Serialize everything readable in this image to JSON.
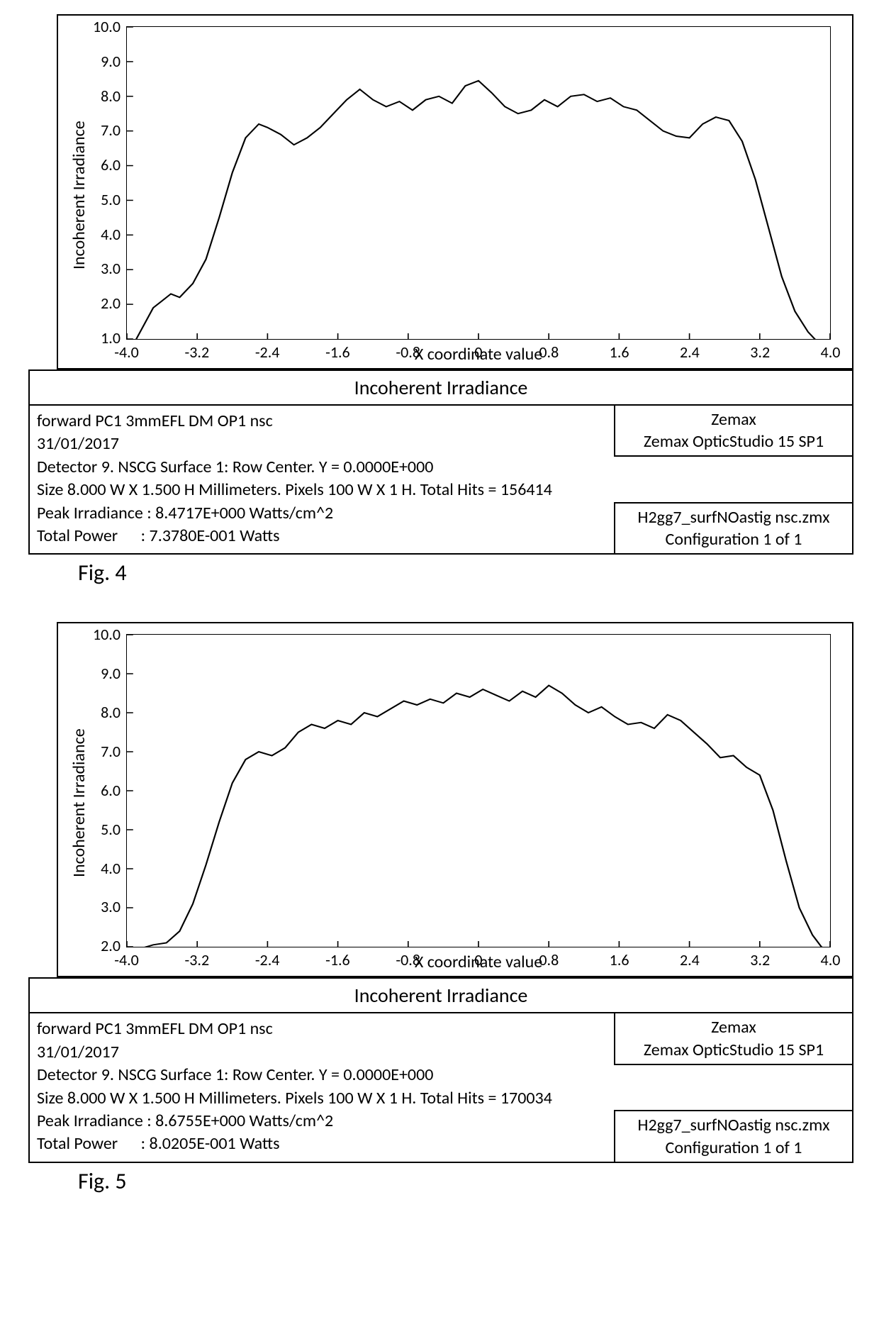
{
  "colors": {
    "line": "#000000",
    "border": "#000000",
    "background": "#ffffff"
  },
  "fig4": {
    "caption": "Fig. 4",
    "chart": {
      "type": "line",
      "ylabel": "Incoherent Irradiance",
      "xlabel": "X coordinate value",
      "xlim": [
        -4.0,
        4.0
      ],
      "ylim": [
        1.0,
        10.0
      ],
      "xtick_step": 0.8,
      "ytick_step": 1.0,
      "xticks": [
        "-4.0",
        "-3.2",
        "-2.4",
        "-1.6",
        "-0.8",
        "0",
        "0.8",
        "1.6",
        "2.4",
        "3.2",
        "4.0"
      ],
      "yticks": [
        "10.0",
        "9.0",
        "8.0",
        "7.0",
        "6.0",
        "5.0",
        "4.0",
        "3.0",
        "2.0",
        "1.0"
      ],
      "label_fontsize": 24,
      "tick_fontsize": 22,
      "line_color": "#000000",
      "line_width": 2,
      "series": [
        {
          "x": -4.0,
          "y": 0.5
        },
        {
          "x": -3.85,
          "y": 1.2
        },
        {
          "x": -3.7,
          "y": 1.9
        },
        {
          "x": -3.6,
          "y": 2.1
        },
        {
          "x": -3.5,
          "y": 2.3
        },
        {
          "x": -3.4,
          "y": 2.2
        },
        {
          "x": -3.25,
          "y": 2.6
        },
        {
          "x": -3.1,
          "y": 3.3
        },
        {
          "x": -2.95,
          "y": 4.5
        },
        {
          "x": -2.8,
          "y": 5.8
        },
        {
          "x": -2.65,
          "y": 6.8
        },
        {
          "x": -2.5,
          "y": 7.2
        },
        {
          "x": -2.4,
          "y": 7.1
        },
        {
          "x": -2.25,
          "y": 6.9
        },
        {
          "x": -2.1,
          "y": 6.6
        },
        {
          "x": -1.95,
          "y": 6.8
        },
        {
          "x": -1.8,
          "y": 7.1
        },
        {
          "x": -1.65,
          "y": 7.5
        },
        {
          "x": -1.5,
          "y": 7.9
        },
        {
          "x": -1.35,
          "y": 8.2
        },
        {
          "x": -1.2,
          "y": 7.9
        },
        {
          "x": -1.05,
          "y": 7.7
        },
        {
          "x": -0.9,
          "y": 7.85
        },
        {
          "x": -0.75,
          "y": 7.6
        },
        {
          "x": -0.6,
          "y": 7.9
        },
        {
          "x": -0.45,
          "y": 8.0
        },
        {
          "x": -0.3,
          "y": 7.8
        },
        {
          "x": -0.15,
          "y": 8.3
        },
        {
          "x": 0.0,
          "y": 8.45
        },
        {
          "x": 0.15,
          "y": 8.1
        },
        {
          "x": 0.3,
          "y": 7.7
        },
        {
          "x": 0.45,
          "y": 7.5
        },
        {
          "x": 0.6,
          "y": 7.6
        },
        {
          "x": 0.75,
          "y": 7.9
        },
        {
          "x": 0.9,
          "y": 7.7
        },
        {
          "x": 1.05,
          "y": 8.0
        },
        {
          "x": 1.2,
          "y": 8.05
        },
        {
          "x": 1.35,
          "y": 7.85
        },
        {
          "x": 1.5,
          "y": 7.95
        },
        {
          "x": 1.65,
          "y": 7.7
        },
        {
          "x": 1.8,
          "y": 7.6
        },
        {
          "x": 1.95,
          "y": 7.3
        },
        {
          "x": 2.1,
          "y": 7.0
        },
        {
          "x": 2.25,
          "y": 6.85
        },
        {
          "x": 2.4,
          "y": 6.8
        },
        {
          "x": 2.55,
          "y": 7.2
        },
        {
          "x": 2.7,
          "y": 7.4
        },
        {
          "x": 2.85,
          "y": 7.3
        },
        {
          "x": 3.0,
          "y": 6.7
        },
        {
          "x": 3.15,
          "y": 5.6
        },
        {
          "x": 3.3,
          "y": 4.2
        },
        {
          "x": 3.45,
          "y": 2.8
        },
        {
          "x": 3.6,
          "y": 1.8
        },
        {
          "x": 3.75,
          "y": 1.2
        },
        {
          "x": 3.9,
          "y": 0.8
        },
        {
          "x": 4.0,
          "y": 0.5
        }
      ]
    },
    "panel": {
      "title": "Incoherent Irradiance",
      "line1": "forward PC1 3mmEFL DM OP1 nsc",
      "line2": "31/01/2017",
      "line3": "Detector 9. NSCG Surface 1: Row Center. Y = 0.0000E+000",
      "line4": "Size 8.000 W X 1.500 H Millimeters. Pixels 100 W X 1 H. Total Hits = 156414",
      "line5": "Peak Irradiance : 8.4717E+000 Watts/cm^2",
      "line6": "Total Power      : 7.3780E-001 Watts",
      "box_top_line1": "Zemax",
      "box_top_line2": "Zemax OpticStudio 15 SP1",
      "box_bottom_line1": "H2gg7_surfNOastig nsc.zmx",
      "box_bottom_line2": "Configuration 1 of 1"
    }
  },
  "fig5": {
    "caption": "Fig. 5",
    "chart": {
      "type": "line",
      "ylabel": "Incoherent Irradiance",
      "xlabel": "X coordinate value",
      "xlim": [
        -4.0,
        4.0
      ],
      "ylim": [
        2.0,
        10.0
      ],
      "xtick_step": 0.8,
      "ytick_step": 1.0,
      "xticks": [
        "-4.0",
        "-3.2",
        "-2.4",
        "-1.6",
        "-0.8",
        "0",
        "0.8",
        "1.6",
        "2.4",
        "3.2",
        "4.0"
      ],
      "yticks": [
        "10.0",
        "9.0",
        "8.0",
        "7.0",
        "6.0",
        "5.0",
        "4.0",
        "3.0",
        "2.0"
      ],
      "label_fontsize": 24,
      "tick_fontsize": 22,
      "line_color": "#000000",
      "line_width": 2,
      "series": [
        {
          "x": -4.0,
          "y": 1.85
        },
        {
          "x": -3.85,
          "y": 1.95
        },
        {
          "x": -3.7,
          "y": 2.05
        },
        {
          "x": -3.55,
          "y": 2.1
        },
        {
          "x": -3.4,
          "y": 2.4
        },
        {
          "x": -3.25,
          "y": 3.1
        },
        {
          "x": -3.1,
          "y": 4.1
        },
        {
          "x": -2.95,
          "y": 5.2
        },
        {
          "x": -2.8,
          "y": 6.2
        },
        {
          "x": -2.65,
          "y": 6.8
        },
        {
          "x": -2.5,
          "y": 7.0
        },
        {
          "x": -2.35,
          "y": 6.9
        },
        {
          "x": -2.2,
          "y": 7.1
        },
        {
          "x": -2.05,
          "y": 7.5
        },
        {
          "x": -1.9,
          "y": 7.7
        },
        {
          "x": -1.75,
          "y": 7.6
        },
        {
          "x": -1.6,
          "y": 7.8
        },
        {
          "x": -1.45,
          "y": 7.7
        },
        {
          "x": -1.3,
          "y": 8.0
        },
        {
          "x": -1.15,
          "y": 7.9
        },
        {
          "x": -1.0,
          "y": 8.1
        },
        {
          "x": -0.85,
          "y": 8.3
        },
        {
          "x": -0.7,
          "y": 8.2
        },
        {
          "x": -0.55,
          "y": 8.35
        },
        {
          "x": -0.4,
          "y": 8.25
        },
        {
          "x": -0.25,
          "y": 8.5
        },
        {
          "x": -0.1,
          "y": 8.4
        },
        {
          "x": 0.05,
          "y": 8.6
        },
        {
          "x": 0.2,
          "y": 8.45
        },
        {
          "x": 0.35,
          "y": 8.3
        },
        {
          "x": 0.5,
          "y": 8.55
        },
        {
          "x": 0.65,
          "y": 8.4
        },
        {
          "x": 0.8,
          "y": 8.7
        },
        {
          "x": 0.95,
          "y": 8.5
        },
        {
          "x": 1.1,
          "y": 8.2
        },
        {
          "x": 1.25,
          "y": 8.0
        },
        {
          "x": 1.4,
          "y": 8.15
        },
        {
          "x": 1.55,
          "y": 7.9
        },
        {
          "x": 1.7,
          "y": 7.7
        },
        {
          "x": 1.85,
          "y": 7.75
        },
        {
          "x": 2.0,
          "y": 7.6
        },
        {
          "x": 2.15,
          "y": 7.95
        },
        {
          "x": 2.3,
          "y": 7.8
        },
        {
          "x": 2.45,
          "y": 7.5
        },
        {
          "x": 2.6,
          "y": 7.2
        },
        {
          "x": 2.75,
          "y": 6.85
        },
        {
          "x": 2.9,
          "y": 6.9
        },
        {
          "x": 3.05,
          "y": 6.6
        },
        {
          "x": 3.2,
          "y": 6.4
        },
        {
          "x": 3.35,
          "y": 5.5
        },
        {
          "x": 3.5,
          "y": 4.2
        },
        {
          "x": 3.65,
          "y": 3.0
        },
        {
          "x": 3.8,
          "y": 2.3
        },
        {
          "x": 3.9,
          "y": 2.0
        },
        {
          "x": 4.0,
          "y": 1.85
        }
      ]
    },
    "panel": {
      "title": "Incoherent Irradiance",
      "line1": "forward PC1 3mmEFL DM OP1 nsc",
      "line2": "31/01/2017",
      "line3": "Detector 9. NSCG Surface 1: Row Center. Y = 0.0000E+000",
      "line4": "Size 8.000 W X 1.500 H Millimeters. Pixels 100 W X 1 H. Total Hits = 170034",
      "line5": "Peak Irradiance : 8.6755E+000 Watts/cm^2",
      "line6": "Total Power      : 8.0205E-001 Watts",
      "box_top_line1": "Zemax",
      "box_top_line2": "Zemax OpticStudio 15 SP1",
      "box_bottom_line1": "H2gg7_surfNOastig nsc.zmx",
      "box_bottom_line2": "Configuration 1 of 1"
    }
  }
}
